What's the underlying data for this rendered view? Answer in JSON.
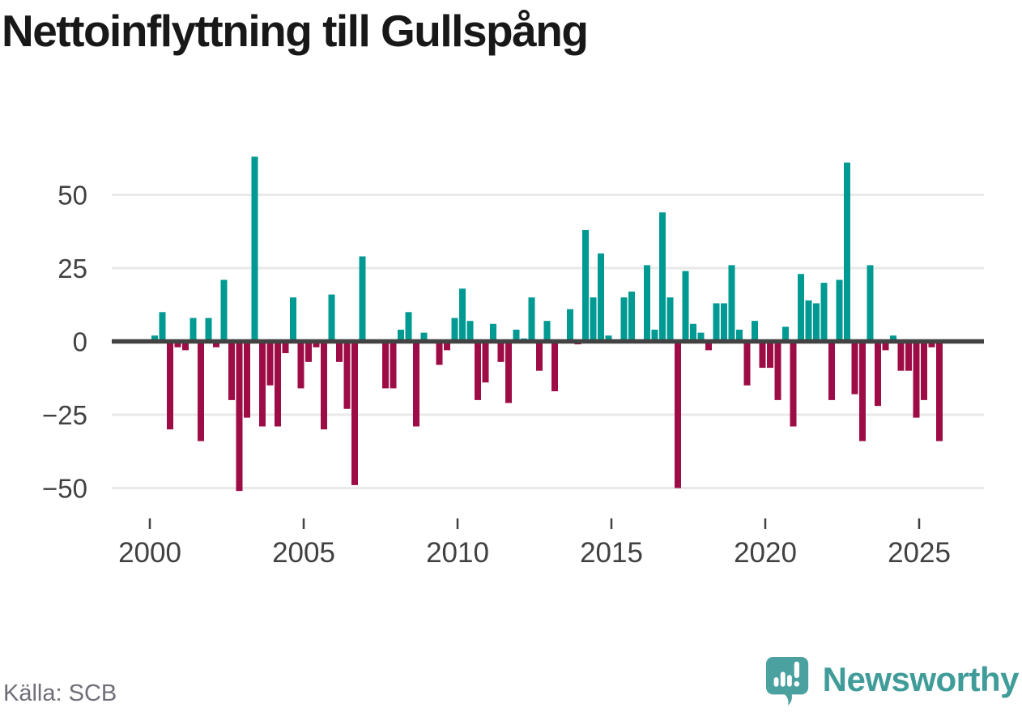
{
  "title": "Nettoinflyttning till Gullspång",
  "source": "Källa: SCB",
  "branding": {
    "name": "Newsworthy",
    "icon": "newsworthy-speech-bubble-chart-icon"
  },
  "colors": {
    "positive_bar": "#009A93",
    "negative_bar": "#9E0C46",
    "zero_line": "#424242",
    "gridline": "#E9E9E9",
    "axis_text": "#414141",
    "title_text": "#181818",
    "source_text": "#6F6F78",
    "brand_teal": "#3F9C99",
    "brand_bubble": "#4BA0A0"
  },
  "chart_data": {
    "type": "bar",
    "title": "Nettoinflyttning till Gullspång",
    "x_frequency": "quarterly",
    "x_start": "2000-Q1",
    "x_end": "2025-Q3",
    "xticks": [
      "2000",
      "2005",
      "2010",
      "2015",
      "2020",
      "2025"
    ],
    "yticks": [
      -50,
      -25,
      0,
      25,
      50
    ],
    "ylim": [
      -55,
      65
    ],
    "grid": "horizontal",
    "legend": "none",
    "values": [
      2,
      10,
      -30,
      -2,
      -3,
      8,
      -34,
      8,
      -2,
      21,
      -20,
      -51,
      -26,
      63,
      -29,
      -15,
      -29,
      -4,
      15,
      -16,
      -7,
      -2,
      -30,
      16,
      -7,
      -23,
      -49,
      29,
      0,
      0,
      -16,
      -16,
      4,
      10,
      -29,
      3,
      0,
      -8,
      -3,
      8,
      18,
      7,
      -20,
      -14,
      6,
      -7,
      -21,
      4,
      1,
      15,
      -10,
      7,
      -17,
      0,
      11,
      -1,
      38,
      15,
      30,
      2,
      0,
      15,
      17,
      0,
      26,
      4,
      44,
      15,
      -50,
      24,
      6,
      3,
      -3,
      13,
      13,
      26,
      4,
      -15,
      7,
      -9,
      -9,
      -20,
      5,
      -29,
      23,
      14,
      13,
      20,
      -20,
      21,
      61,
      -18,
      -34,
      26,
      -22,
      -3,
      2,
      -10,
      -10,
      -26,
      -20,
      -2,
      -34
    ]
  }
}
